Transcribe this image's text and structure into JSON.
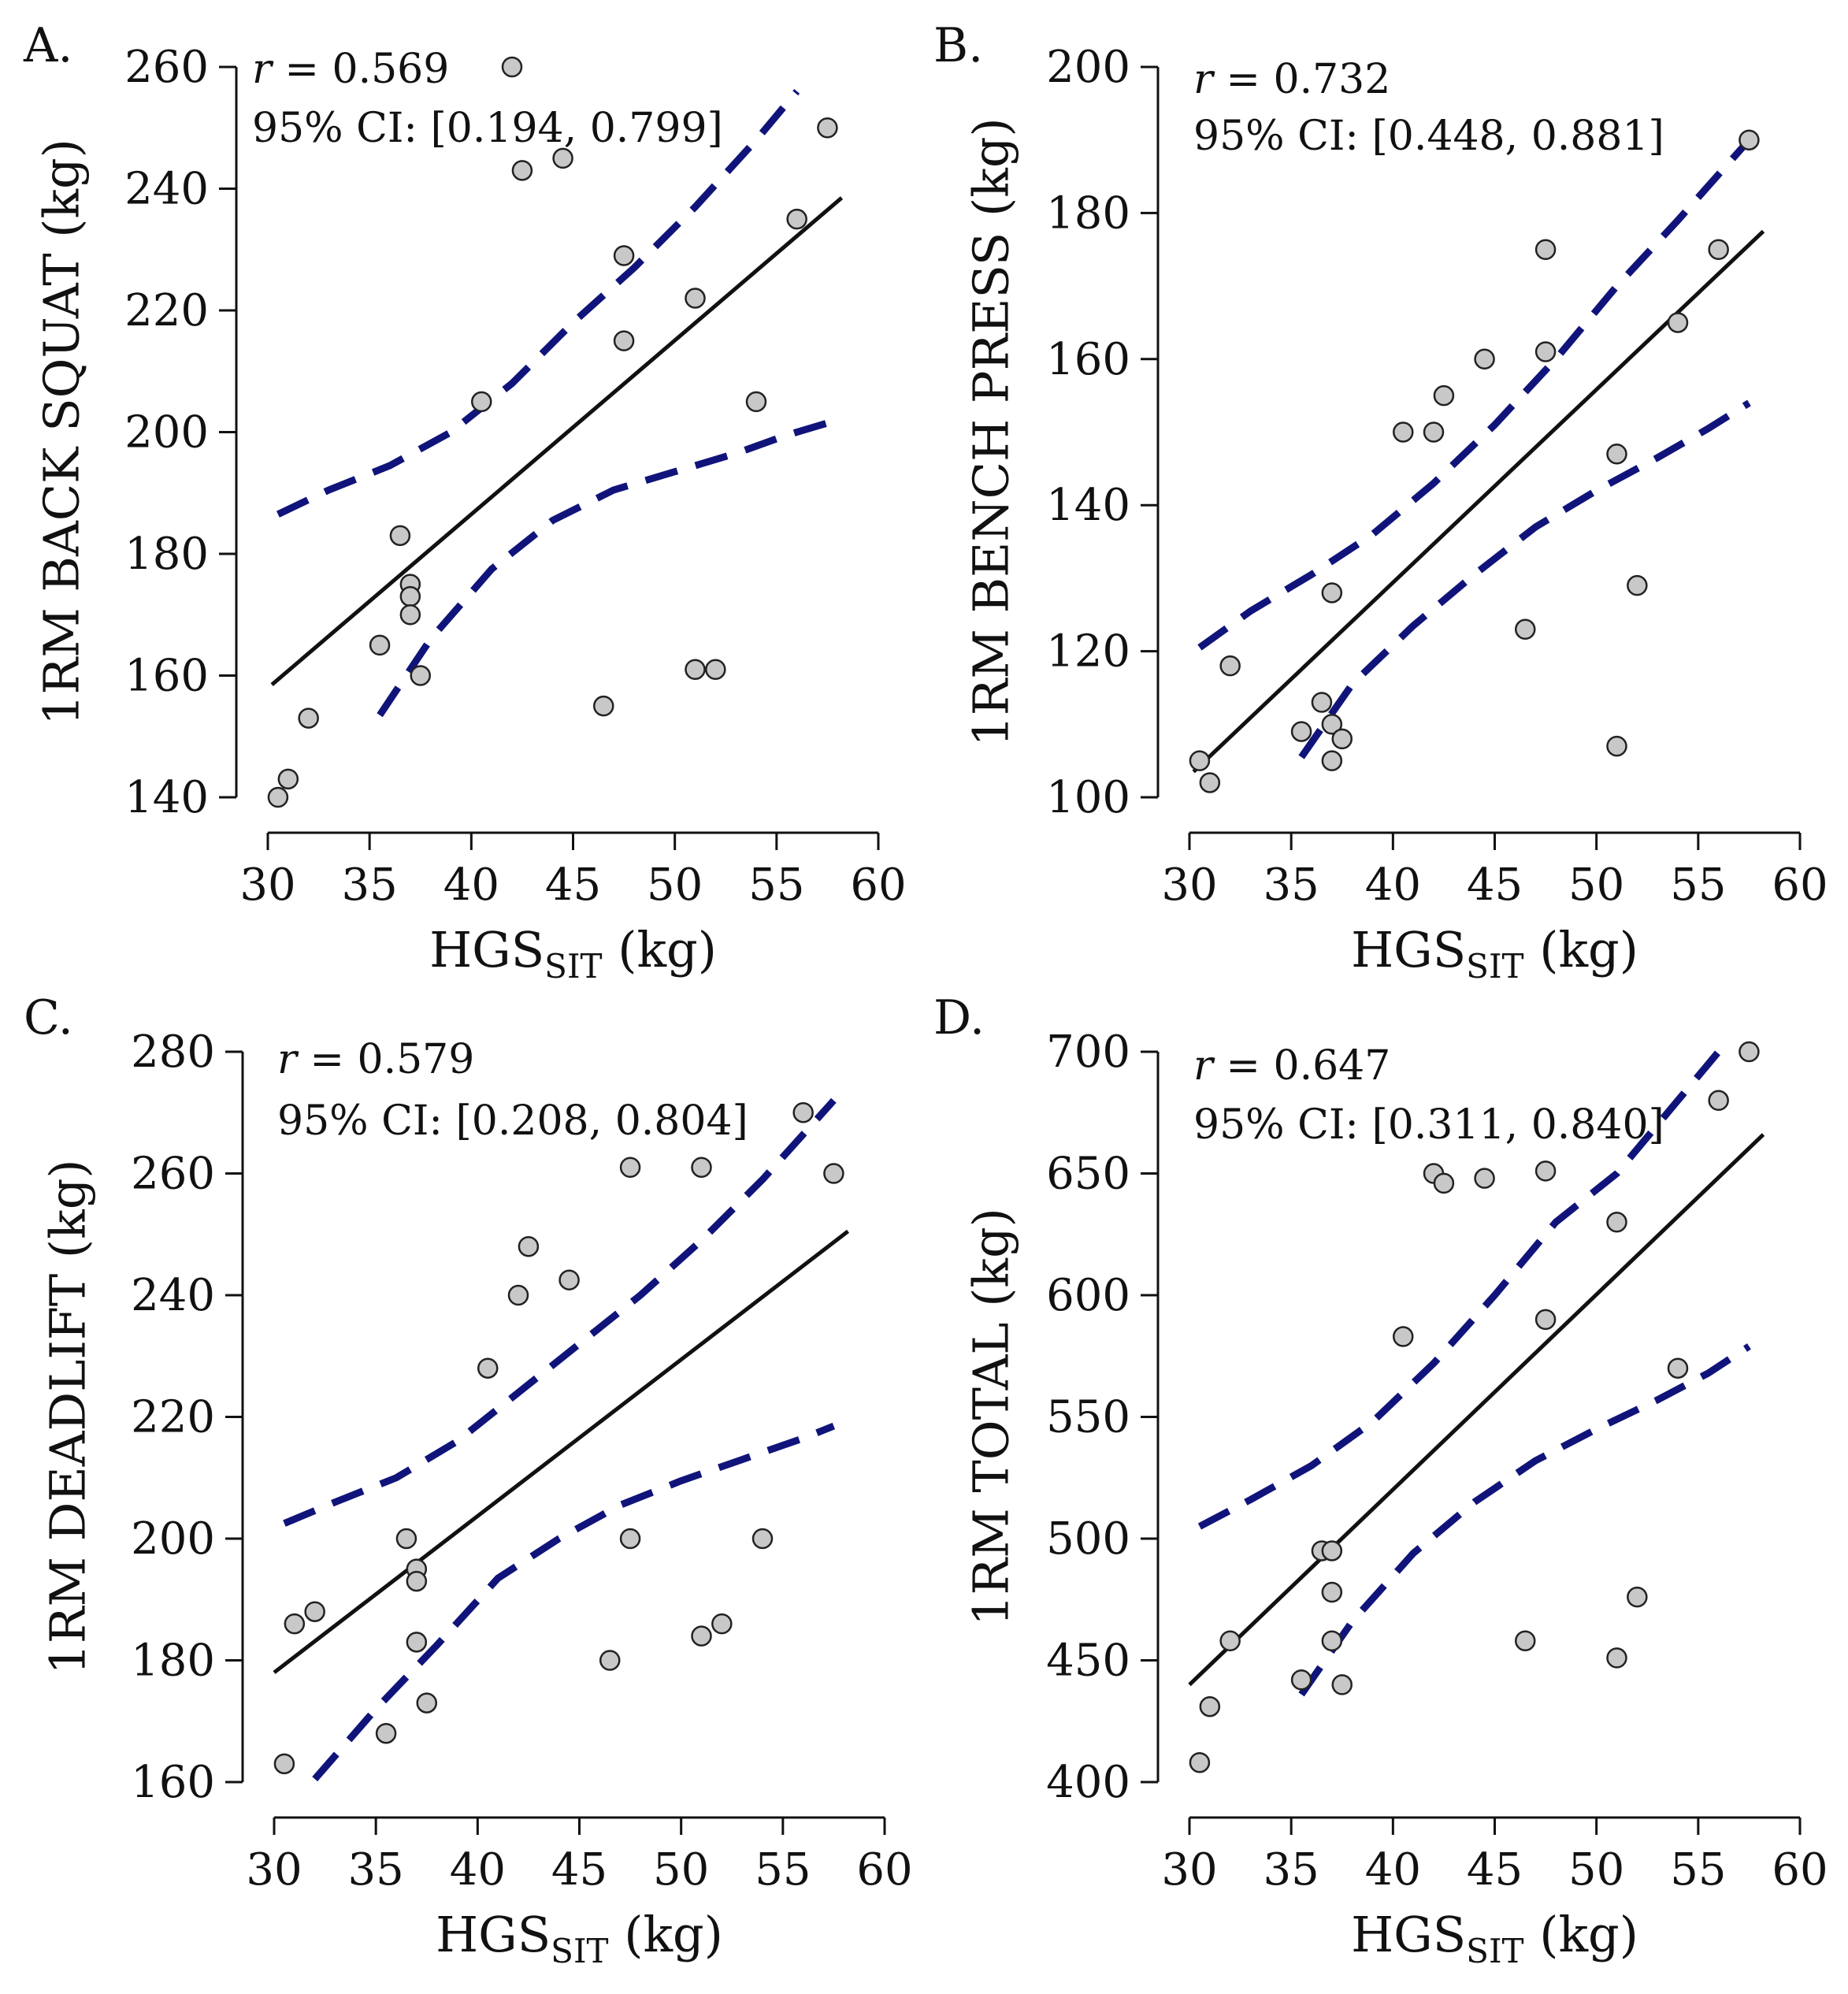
{
  "figure": {
    "xlabel_main": "HGS",
    "xlabel_sub": "SIT",
    "xlabel_unit": " (kg)",
    "colors": {
      "fit_line": "#111111",
      "ci_band": "#10147a",
      "point_fill": "#c8c8c8",
      "point_stroke": "#222222",
      "axis": "#111111"
    }
  },
  "chart_data": [
    {
      "type": "scatter",
      "panel": "A.",
      "ylabel": "1RM BACK SQUAT (kg)",
      "xlim": [
        30,
        60
      ],
      "ylim": [
        140,
        260
      ],
      "xticks": [
        30,
        35,
        40,
        45,
        50,
        55,
        60
      ],
      "yticks": [
        140,
        160,
        180,
        200,
        220,
        240,
        260
      ],
      "r_text": "r",
      "r_value": " = 0.569",
      "ci_text": "95% CI: [0.194, 0.799]",
      "points": [
        [
          30.5,
          140
        ],
        [
          31,
          143
        ],
        [
          32,
          153
        ],
        [
          35.5,
          165
        ],
        [
          36.5,
          183
        ],
        [
          37,
          175
        ],
        [
          37,
          173
        ],
        [
          37,
          170
        ],
        [
          37.5,
          160
        ],
        [
          40.5,
          205
        ],
        [
          42,
          260
        ],
        [
          42.5,
          243
        ],
        [
          44.5,
          245
        ],
        [
          46.5,
          155
        ],
        [
          47.5,
          229
        ],
        [
          47.5,
          215
        ],
        [
          51,
          222
        ],
        [
          51,
          161
        ],
        [
          52,
          161
        ],
        [
          54,
          205
        ],
        [
          56,
          235
        ],
        [
          57.5,
          250
        ]
      ],
      "fit": {
        "x": [
          30.2,
          58.2
        ],
        "y": [
          158.5,
          238.5
        ]
      },
      "ci_upper": {
        "x": [
          30.5,
          33,
          36,
          39,
          42,
          45,
          48,
          51,
          54,
          56
        ],
        "y": [
          186.5,
          190.5,
          194.5,
          200,
          208,
          218,
          227,
          237,
          248,
          256
        ]
      },
      "ci_lower": {
        "x": [
          35.5,
          38,
          41,
          44,
          47,
          50,
          53,
          55.5,
          57.5
        ],
        "y": [
          153.5,
          166,
          177.5,
          185.5,
          190.5,
          193.5,
          196.5,
          199.5,
          201.5
        ]
      }
    },
    {
      "type": "scatter",
      "panel": "B.",
      "ylabel": "1RM BENCH PRESS (kg)",
      "xlim": [
        30,
        60
      ],
      "ylim": [
        100,
        200
      ],
      "xticks": [
        30,
        35,
        40,
        45,
        50,
        55,
        60
      ],
      "yticks": [
        100,
        120,
        140,
        160,
        180,
        200
      ],
      "r_text": "r",
      "r_value": " = 0.732",
      "ci_text": "95% CI: [0.448, 0.881]",
      "points": [
        [
          30.5,
          105
        ],
        [
          31,
          102
        ],
        [
          32,
          118
        ],
        [
          35.5,
          109
        ],
        [
          36.5,
          113
        ],
        [
          37,
          110
        ],
        [
          37,
          105
        ],
        [
          37,
          128
        ],
        [
          37.5,
          108
        ],
        [
          40.5,
          150
        ],
        [
          42,
          150
        ],
        [
          42.5,
          155
        ],
        [
          44.5,
          160
        ],
        [
          46.5,
          123
        ],
        [
          47.5,
          175
        ],
        [
          47.5,
          161
        ],
        [
          51,
          147
        ],
        [
          51,
          107
        ],
        [
          52,
          129
        ],
        [
          54,
          165
        ],
        [
          56,
          175
        ],
        [
          57.5,
          190
        ]
      ],
      "fit": {
        "x": [
          30.2,
          58.2
        ],
        "y": [
          103.5,
          177.5
        ]
      },
      "ci_upper": {
        "x": [
          30.5,
          33,
          36,
          39,
          42,
          45,
          48,
          51,
          54,
          57.5
        ],
        "y": [
          120.5,
          125.5,
          130.5,
          136,
          143,
          151,
          160,
          170,
          179,
          190
        ]
      },
      "ci_lower": {
        "x": [
          35.5,
          38,
          41,
          44,
          47,
          50,
          53,
          55.5,
          57.5
        ],
        "y": [
          105.5,
          115.5,
          123.5,
          130.5,
          137,
          142,
          146.5,
          150.5,
          154
        ]
      }
    },
    {
      "type": "scatter",
      "panel": "C.",
      "ylabel": "1RM DEADLIFT (kg)",
      "xlim": [
        30,
        60
      ],
      "ylim": [
        160,
        280
      ],
      "xticks": [
        30,
        35,
        40,
        45,
        50,
        55,
        60
      ],
      "yticks": [
        160,
        180,
        200,
        220,
        240,
        260,
        280
      ],
      "r_text": "r",
      "r_value": " = 0.579",
      "ci_text": "95% CI: [0.208, 0.804]",
      "points": [
        [
          30.5,
          163
        ],
        [
          31,
          186
        ],
        [
          32,
          188
        ],
        [
          35.5,
          168
        ],
        [
          36.5,
          200
        ],
        [
          37,
          195
        ],
        [
          37,
          193
        ],
        [
          37,
          183
        ],
        [
          37.5,
          173
        ],
        [
          40.5,
          228
        ],
        [
          42,
          240
        ],
        [
          42.5,
          248
        ],
        [
          44.5,
          242.5
        ],
        [
          46.5,
          180
        ],
        [
          47.5,
          261
        ],
        [
          47.5,
          200
        ],
        [
          51,
          261
        ],
        [
          51,
          184
        ],
        [
          52,
          186
        ],
        [
          54,
          200
        ],
        [
          56,
          270
        ],
        [
          57.5,
          260
        ]
      ],
      "fit": {
        "x": [
          30,
          58.2
        ],
        "y": [
          178,
          250.5
        ]
      },
      "ci_upper": {
        "x": [
          30.5,
          33,
          36,
          39,
          42,
          45,
          48,
          51,
          54,
          57.5
        ],
        "y": [
          202.5,
          206,
          210,
          216,
          224,
          232,
          240,
          249,
          259,
          272
        ]
      },
      "ci_lower": {
        "x": [
          32,
          35,
          38,
          41,
          44,
          47,
          50,
          53,
          56,
          57.5
        ],
        "y": [
          160.5,
          172,
          182.5,
          193.5,
          200,
          205.5,
          209.5,
          213,
          216.5,
          218.5
        ]
      }
    },
    {
      "type": "scatter",
      "panel": "D.",
      "ylabel": "1RM TOTAL (kg)",
      "xlim": [
        30,
        60
      ],
      "ylim": [
        400,
        700
      ],
      "xticks": [
        30,
        35,
        40,
        45,
        50,
        55,
        60
      ],
      "yticks": [
        400,
        450,
        500,
        550,
        600,
        650,
        700
      ],
      "r_text": "r",
      "r_value": " = 0.647",
      "ci_text": "95% CI: [0.311, 0.840]",
      "points": [
        [
          30.5,
          408
        ],
        [
          31,
          431
        ],
        [
          32,
          458
        ],
        [
          35.5,
          442
        ],
        [
          36.5,
          495
        ],
        [
          37,
          495
        ],
        [
          37,
          478
        ],
        [
          37,
          458
        ],
        [
          37.5,
          440
        ],
        [
          40.5,
          583
        ],
        [
          42,
          650
        ],
        [
          42.5,
          646
        ],
        [
          44.5,
          648
        ],
        [
          46.5,
          458
        ],
        [
          47.5,
          651
        ],
        [
          47.5,
          590
        ],
        [
          51,
          630
        ],
        [
          51,
          451
        ],
        [
          52,
          476
        ],
        [
          54,
          570
        ],
        [
          56,
          680
        ],
        [
          57.5,
          700
        ]
      ],
      "fit": {
        "x": [
          30,
          58.2
        ],
        "y": [
          440,
          666
        ]
      },
      "ci_upper": {
        "x": [
          30.5,
          33,
          36,
          39,
          42,
          45,
          48,
          51,
          54,
          56
        ],
        "y": [
          505,
          516,
          530,
          548,
          572,
          600,
          630,
          650,
          680,
          700
        ]
      },
      "ci_lower": {
        "x": [
          35.5,
          38,
          41,
          44,
          47,
          50,
          53,
          55.5,
          57.5
        ],
        "y": [
          436,
          466,
          494,
          515,
          532,
          545,
          557,
          568,
          579
        ]
      }
    }
  ]
}
